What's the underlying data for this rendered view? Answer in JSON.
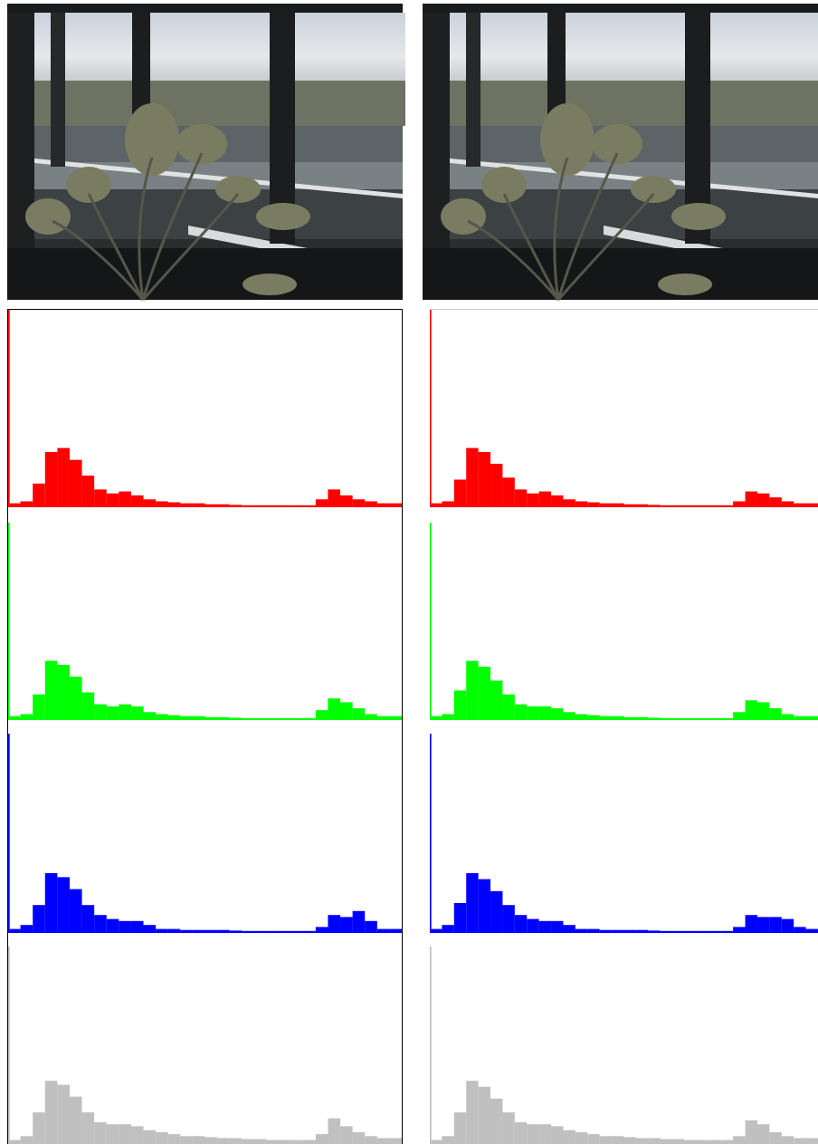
{
  "chart_data": [
    {
      "type": "histogram",
      "color": "#ff0000",
      "xlim": [
        0,
        256
      ],
      "ylim": [
        0,
        100
      ],
      "bins": [
        0,
        1,
        8,
        16,
        24,
        32,
        40,
        48,
        56,
        64,
        72,
        80,
        88,
        96,
        104,
        112,
        120,
        128,
        136,
        144,
        152,
        160,
        168,
        176,
        184,
        192,
        200,
        208,
        216,
        224,
        232,
        240,
        248,
        256
      ],
      "values": [
        100,
        2,
        3,
        12,
        28,
        30,
        24,
        16,
        9,
        7,
        8,
        6,
        4,
        3,
        2.5,
        2,
        2,
        1.5,
        1.5,
        1.2,
        1,
        1,
        1,
        1,
        1,
        1,
        4,
        9,
        6,
        4,
        3,
        2,
        2
      ]
    },
    {
      "type": "histogram",
      "color": "#00ff00",
      "xlim": [
        0,
        256
      ],
      "ylim": [
        0,
        100
      ],
      "bins": [
        0,
        1,
        8,
        16,
        24,
        32,
        40,
        48,
        56,
        64,
        72,
        80,
        88,
        96,
        104,
        112,
        120,
        128,
        136,
        144,
        152,
        160,
        168,
        176,
        184,
        192,
        200,
        208,
        216,
        224,
        232,
        240,
        248,
        256
      ],
      "values": [
        100,
        2,
        3,
        13,
        30,
        28,
        22,
        14,
        8,
        7,
        8,
        7,
        4,
        3,
        2.5,
        2,
        2,
        1.5,
        1.5,
        1.2,
        1,
        1,
        1,
        1,
        1,
        1,
        5,
        11,
        9,
        6,
        3,
        2,
        2
      ]
    },
    {
      "type": "histogram",
      "color": "#0000ff",
      "xlim": [
        0,
        256
      ],
      "ylim": [
        0,
        100
      ],
      "bins": [
        0,
        1,
        8,
        16,
        24,
        32,
        40,
        48,
        56,
        64,
        72,
        80,
        88,
        96,
        104,
        112,
        120,
        128,
        136,
        144,
        152,
        160,
        168,
        176,
        184,
        192,
        200,
        208,
        216,
        224,
        232,
        240,
        248,
        256
      ],
      "values": [
        100,
        2,
        4,
        14,
        30,
        28,
        22,
        14,
        9,
        7,
        6,
        6,
        4,
        2,
        2,
        1.5,
        1.5,
        1.5,
        1.5,
        1.2,
        1,
        1,
        1,
        1,
        1,
        1,
        3,
        9,
        8,
        11,
        6,
        2,
        2
      ]
    },
    {
      "type": "histogram",
      "color": "#c0c0c0",
      "xlim": [
        0,
        256
      ],
      "ylim": [
        0,
        100
      ],
      "bins": [
        0,
        1,
        8,
        16,
        24,
        32,
        40,
        48,
        56,
        64,
        72,
        80,
        88,
        96,
        104,
        112,
        120,
        128,
        136,
        144,
        152,
        160,
        168,
        176,
        184,
        192,
        200,
        208,
        216,
        224,
        232,
        240,
        248,
        256
      ],
      "values": [
        100,
        2,
        4,
        16,
        32,
        30,
        24,
        16,
        11,
        10,
        10,
        9,
        7,
        6,
        5,
        4,
        4,
        3.5,
        3,
        3,
        2.5,
        2.5,
        2,
        2,
        2,
        2,
        5,
        13,
        9,
        6,
        4,
        3,
        3
      ]
    },
    {
      "type": "histogram",
      "color": "#ff0000",
      "xlim": [
        0,
        256
      ],
      "ylim": [
        0,
        100
      ],
      "bins": [
        0,
        1,
        8,
        16,
        24,
        32,
        40,
        48,
        56,
        64,
        72,
        80,
        88,
        96,
        104,
        112,
        120,
        128,
        136,
        144,
        152,
        160,
        168,
        176,
        184,
        192,
        200,
        208,
        216,
        224,
        232,
        240,
        248,
        256
      ],
      "values": [
        100,
        2,
        3,
        14,
        30,
        28,
        22,
        15,
        9,
        7,
        8,
        6,
        4,
        3,
        2.5,
        2,
        2,
        1.5,
        1.5,
        1.2,
        1,
        1,
        1,
        1,
        1,
        1,
        3,
        8,
        7,
        5,
        3,
        2,
        2
      ]
    },
    {
      "type": "histogram",
      "color": "#00ff00",
      "xlim": [
        0,
        256
      ],
      "ylim": [
        0,
        100
      ],
      "bins": [
        0,
        1,
        8,
        16,
        24,
        32,
        40,
        48,
        56,
        64,
        72,
        80,
        88,
        96,
        104,
        112,
        120,
        128,
        136,
        144,
        152,
        160,
        168,
        176,
        184,
        192,
        200,
        208,
        216,
        224,
        232,
        240,
        248,
        256
      ],
      "values": [
        100,
        2,
        3,
        15,
        30,
        27,
        20,
        13,
        8,
        7,
        7,
        6,
        4,
        3,
        2.5,
        2,
        2,
        1.5,
        1.5,
        1.2,
        1,
        1,
        1,
        1,
        1,
        1,
        4,
        10,
        9,
        6,
        3,
        2,
        2
      ]
    },
    {
      "type": "histogram",
      "color": "#0000ff",
      "xlim": [
        0,
        256
      ],
      "ylim": [
        0,
        100
      ],
      "bins": [
        0,
        1,
        8,
        16,
        24,
        32,
        40,
        48,
        56,
        64,
        72,
        80,
        88,
        96,
        104,
        112,
        120,
        128,
        136,
        144,
        152,
        160,
        168,
        176,
        184,
        192,
        200,
        208,
        216,
        224,
        232,
        240,
        248,
        256
      ],
      "values": [
        100,
        2,
        4,
        15,
        30,
        27,
        21,
        14,
        9,
        7,
        6,
        6,
        4,
        2,
        2,
        1.5,
        1.5,
        1.5,
        1.5,
        1.2,
        1,
        1,
        1,
        1,
        1,
        1,
        3,
        9,
        8,
        8,
        7,
        3,
        2
      ]
    },
    {
      "type": "histogram",
      "color": "#c0c0c0",
      "xlim": [
        0,
        256
      ],
      "ylim": [
        0,
        100
      ],
      "bins": [
        0,
        1,
        8,
        16,
        24,
        32,
        40,
        48,
        56,
        64,
        72,
        80,
        88,
        96,
        104,
        112,
        120,
        128,
        136,
        144,
        152,
        160,
        168,
        176,
        184,
        192,
        200,
        208,
        216,
        224,
        232,
        240,
        248,
        256
      ],
      "values": [
        100,
        2,
        4,
        16,
        32,
        29,
        23,
        16,
        11,
        10,
        10,
        9,
        7,
        6,
        5,
        4,
        4,
        3.5,
        3,
        3,
        2.5,
        2.5,
        2,
        2,
        2,
        2,
        4,
        12,
        10,
        6,
        4,
        3,
        3
      ]
    }
  ]
}
